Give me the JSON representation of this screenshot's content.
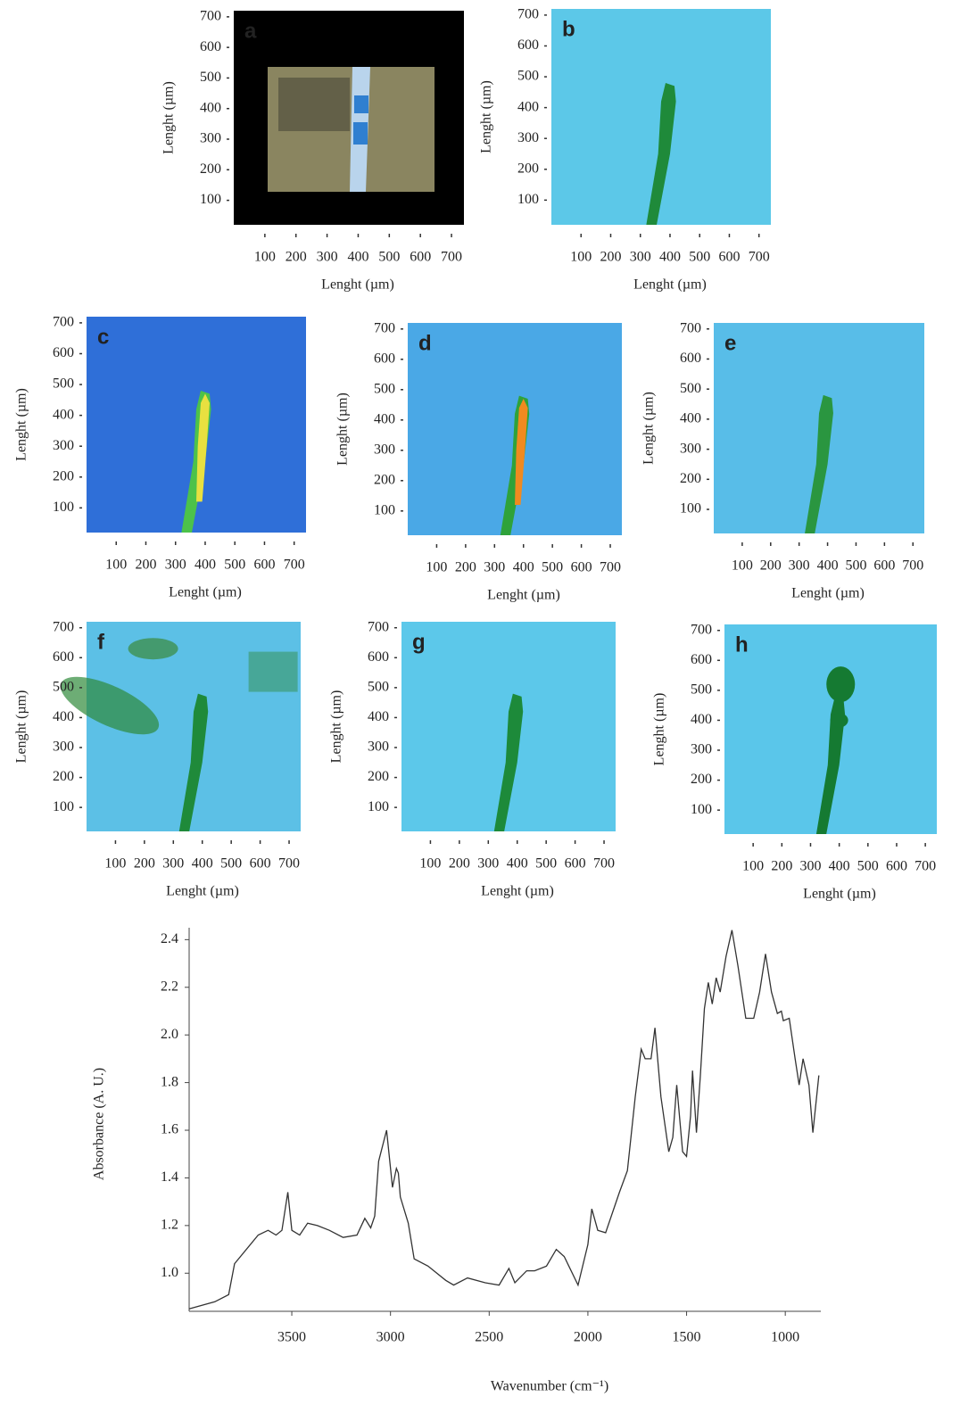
{
  "chart_data": [
    {
      "type": "image",
      "label": "a",
      "xlabel": "Lenght (µm)",
      "ylabel": "Lenght (µm)",
      "xlim": [
        0,
        740
      ],
      "ylim": [
        20,
        720
      ],
      "xticks": [
        100,
        200,
        300,
        400,
        500,
        600,
        700
      ],
      "yticks": [
        100,
        200,
        300,
        400,
        500,
        600,
        700
      ]
    },
    {
      "type": "image",
      "label": "b",
      "xlabel": "Lenght (µm)",
      "ylabel": "Lenght (µm)",
      "xlim": [
        0,
        740
      ],
      "ylim": [
        20,
        720
      ],
      "xticks": [
        100,
        200,
        300,
        400,
        500,
        600,
        700
      ],
      "yticks": [
        100,
        200,
        300,
        400,
        500,
        600,
        700
      ]
    },
    {
      "type": "image",
      "label": "c",
      "xlabel": "Lenght (µm)",
      "ylabel": "Lenght (µm)",
      "xlim": [
        0,
        740
      ],
      "ylim": [
        20,
        720
      ],
      "xticks": [
        100,
        200,
        300,
        400,
        500,
        600,
        700
      ],
      "yticks": [
        100,
        200,
        300,
        400,
        500,
        600,
        700
      ]
    },
    {
      "type": "image",
      "label": "d",
      "xlabel": "Lenght (µm)",
      "ylabel": "Lenght (µm)",
      "xlim": [
        0,
        740
      ],
      "ylim": [
        20,
        720
      ],
      "xticks": [
        100,
        200,
        300,
        400,
        500,
        600,
        700
      ],
      "yticks": [
        100,
        200,
        300,
        400,
        500,
        600,
        700
      ]
    },
    {
      "type": "image",
      "label": "e",
      "xlabel": "Lenght (µm)",
      "ylabel": "Lenght (µm)",
      "xlim": [
        0,
        740
      ],
      "ylim": [
        20,
        720
      ],
      "xticks": [
        100,
        200,
        300,
        400,
        500,
        600,
        700
      ],
      "yticks": [
        100,
        200,
        300,
        400,
        500,
        600,
        700
      ]
    },
    {
      "type": "image",
      "label": "f",
      "xlabel": "Lenght (µm)",
      "ylabel": "Lenght (µm)",
      "xlim": [
        0,
        740
      ],
      "ylim": [
        20,
        720
      ],
      "xticks": [
        100,
        200,
        300,
        400,
        500,
        600,
        700
      ],
      "yticks": [
        100,
        200,
        300,
        400,
        500,
        600,
        700
      ]
    },
    {
      "type": "image",
      "label": "g",
      "xlabel": "Lenght (µm)",
      "ylabel": "Lenght (µm)",
      "xlim": [
        0,
        740
      ],
      "ylim": [
        20,
        720
      ],
      "xticks": [
        100,
        200,
        300,
        400,
        500,
        600,
        700
      ],
      "yticks": [
        100,
        200,
        300,
        400,
        500,
        600,
        700
      ]
    },
    {
      "type": "image",
      "label": "h",
      "xlabel": "Lenght (µm)",
      "ylabel": "Lenght (µm)",
      "xlim": [
        0,
        740
      ],
      "ylim": [
        20,
        720
      ],
      "xticks": [
        100,
        200,
        300,
        400,
        500,
        600,
        700
      ],
      "yticks": [
        100,
        200,
        300,
        400,
        500,
        600,
        700
      ]
    },
    {
      "type": "line",
      "xlabel": "Wavenumber (cm⁻¹)",
      "ylabel": "Absorbance (A. U.)",
      "color": "#333333",
      "xlim": [
        4020,
        820
      ],
      "ylim": [
        0.84,
        2.45
      ],
      "xticks": [
        3500,
        3000,
        2500,
        2000,
        1500,
        1000
      ],
      "yticks": [
        {
          "value": 1,
          "label": "1.0"
        },
        1.2,
        1.4,
        1.6,
        1.8,
        {
          "value": 2,
          "label": "2.0"
        },
        2.2,
        2.4
      ],
      "x": [
        4020,
        3890,
        3820,
        3790,
        3670,
        3620,
        3580,
        3550,
        3520,
        3500,
        3460,
        3420,
        3370,
        3310,
        3240,
        3170,
        3130,
        3100,
        3080,
        3060,
        3020,
        2990,
        2970,
        2960,
        2950,
        2910,
        2880,
        2810,
        2720,
        2680,
        2610,
        2520,
        2450,
        2400,
        2370,
        2310,
        2270,
        2210,
        2160,
        2120,
        2050,
        2000,
        1980,
        1950,
        1910,
        1840,
        1800,
        1760,
        1730,
        1710,
        1680,
        1660,
        1630,
        1590,
        1570,
        1550,
        1520,
        1500,
        1480,
        1470,
        1450,
        1430,
        1410,
        1390,
        1370,
        1350,
        1330,
        1300,
        1270,
        1240,
        1200,
        1160,
        1130,
        1100,
        1070,
        1040,
        1020,
        1010,
        980,
        950,
        930,
        910,
        880,
        860,
        830
      ],
      "values": [
        0.85,
        0.88,
        0.91,
        1.04,
        1.16,
        1.18,
        1.16,
        1.18,
        1.34,
        1.18,
        1.16,
        1.21,
        1.2,
        1.18,
        1.15,
        1.16,
        1.23,
        1.19,
        1.24,
        1.47,
        1.6,
        1.36,
        1.44,
        1.42,
        1.32,
        1.21,
        1.06,
        1.03,
        0.97,
        0.95,
        0.98,
        0.96,
        0.95,
        1.02,
        0.96,
        1.01,
        1.01,
        1.03,
        1.1,
        1.07,
        0.95,
        1.12,
        1.27,
        1.18,
        1.17,
        1.34,
        1.43,
        1.74,
        1.94,
        1.9,
        1.9,
        2.03,
        1.74,
        1.51,
        1.57,
        1.79,
        1.51,
        1.49,
        1.66,
        1.85,
        1.59,
        1.83,
        2.11,
        2.22,
        2.13,
        2.24,
        2.18,
        2.33,
        2.44,
        2.29,
        2.07,
        2.07,
        2.18,
        2.34,
        2.18,
        2.09,
        2.1,
        2.06,
        2.07,
        1.9,
        1.79,
        1.9,
        1.79,
        1.59,
        1.83
      ]
    }
  ]
}
